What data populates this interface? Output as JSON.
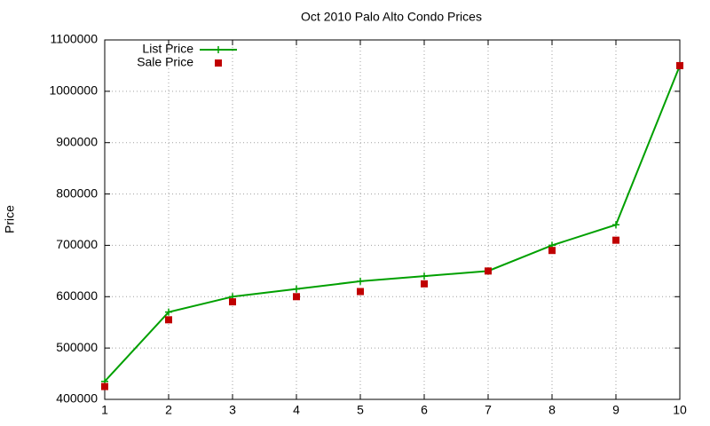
{
  "chart_data": {
    "type": "line",
    "title": "Oct 2010 Palo Alto Condo Prices",
    "ylabel": "Price",
    "x": [
      1,
      2,
      3,
      4,
      5,
      6,
      7,
      8,
      9,
      10
    ],
    "series": [
      {
        "name": "List Price",
        "color": "#00a000",
        "mode": "lines+markers",
        "marker": "plus",
        "values": [
          435000,
          570000,
          600000,
          615000,
          630000,
          640000,
          650000,
          700000,
          740000,
          1050000
        ]
      },
      {
        "name": "Sale Price",
        "color": "#c00000",
        "mode": "markers",
        "marker": "square",
        "values": [
          425000,
          555000,
          590000,
          600000,
          610000,
          625000,
          650000,
          690000,
          710000,
          1050000
        ]
      }
    ],
    "xlim": [
      1,
      10
    ],
    "xticks": [
      1,
      2,
      3,
      4,
      5,
      6,
      7,
      8,
      9,
      10
    ],
    "ylim": [
      400000,
      1100000
    ],
    "yticks": [
      400000,
      500000,
      600000,
      700000,
      800000,
      900000,
      1000000,
      1100000
    ],
    "grid": true,
    "legend": "top-left"
  }
}
